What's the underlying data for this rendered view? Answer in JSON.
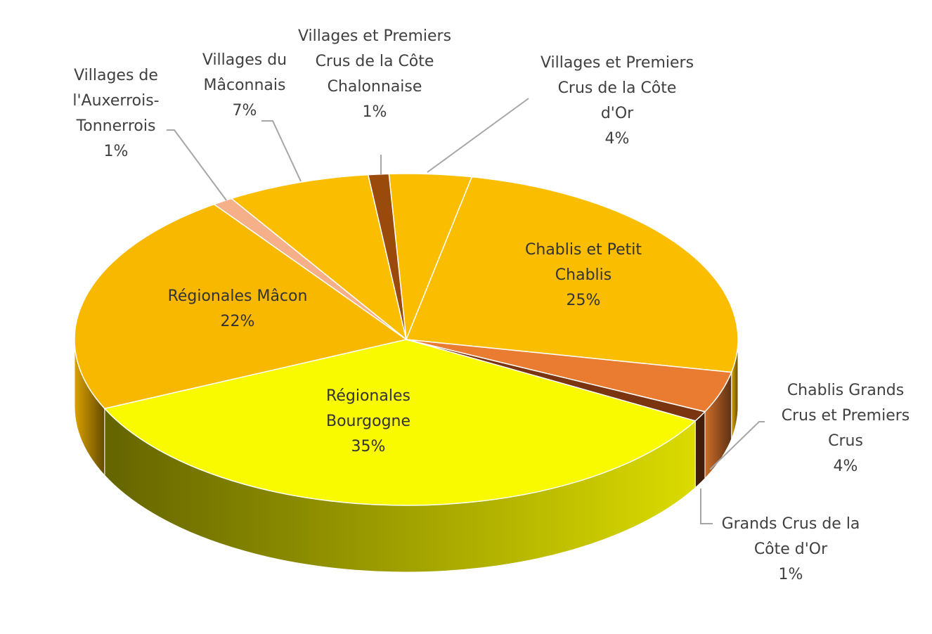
{
  "chart_data": {
    "type": "pie",
    "categories": [
      "Villages et Premiers Crus de la Côte d'Or",
      "Chablis et Petit Chablis",
      "Chablis Grands Crus et Premiers Crus",
      "Grands Crus de la Côte d'Or",
      "Régionales Bourgogne",
      "Régionales Mâcon",
      "Villages de l'Auxerrois-Tonnerrois",
      "Villages du Mâconnais",
      "Villages et Premiers Crus de la Côte Chalonnaise"
    ],
    "values": [
      4,
      25,
      4,
      1,
      35,
      22,
      1,
      7,
      1
    ],
    "value_labels": [
      "4%",
      "25%",
      "4%",
      "1%",
      "35%",
      "22%",
      "1%",
      "7%",
      "1%"
    ],
    "colors": [
      "#fbbd00",
      "#fbbd00",
      "#e97c30",
      "#7a3510",
      "#f9f900",
      "#f9b800",
      "#f5b08a",
      "#fbbd00",
      "#9a4a0a"
    ]
  }
}
